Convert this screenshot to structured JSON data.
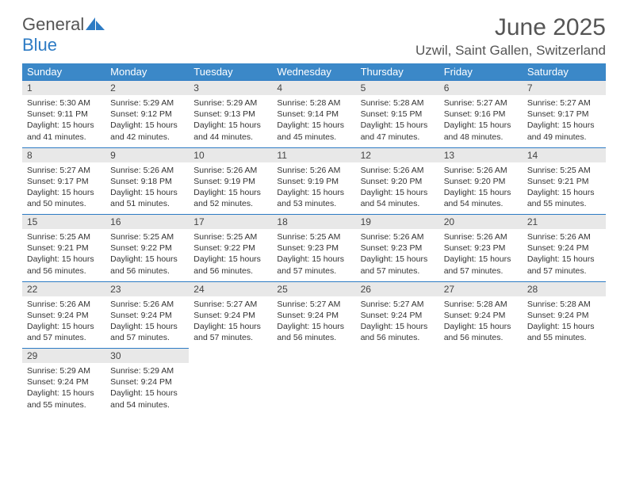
{
  "logo": {
    "text_general": "General",
    "text_blue": "Blue"
  },
  "title": "June 2025",
  "location": "Uzwil, Saint Gallen, Switzerland",
  "colors": {
    "header_bg": "#3b88c8",
    "header_text": "#ffffff",
    "daynum_bg": "#e8e8e8",
    "daynum_border": "#2d7bc4",
    "text": "#333333",
    "title_text": "#555555"
  },
  "day_headers": [
    "Sunday",
    "Monday",
    "Tuesday",
    "Wednesday",
    "Thursday",
    "Friday",
    "Saturday"
  ],
  "weeks": [
    [
      {
        "num": "1",
        "sunrise": "Sunrise: 5:30 AM",
        "sunset": "Sunset: 9:11 PM",
        "daylight": "Daylight: 15 hours and 41 minutes."
      },
      {
        "num": "2",
        "sunrise": "Sunrise: 5:29 AM",
        "sunset": "Sunset: 9:12 PM",
        "daylight": "Daylight: 15 hours and 42 minutes."
      },
      {
        "num": "3",
        "sunrise": "Sunrise: 5:29 AM",
        "sunset": "Sunset: 9:13 PM",
        "daylight": "Daylight: 15 hours and 44 minutes."
      },
      {
        "num": "4",
        "sunrise": "Sunrise: 5:28 AM",
        "sunset": "Sunset: 9:14 PM",
        "daylight": "Daylight: 15 hours and 45 minutes."
      },
      {
        "num": "5",
        "sunrise": "Sunrise: 5:28 AM",
        "sunset": "Sunset: 9:15 PM",
        "daylight": "Daylight: 15 hours and 47 minutes."
      },
      {
        "num": "6",
        "sunrise": "Sunrise: 5:27 AM",
        "sunset": "Sunset: 9:16 PM",
        "daylight": "Daylight: 15 hours and 48 minutes."
      },
      {
        "num": "7",
        "sunrise": "Sunrise: 5:27 AM",
        "sunset": "Sunset: 9:17 PM",
        "daylight": "Daylight: 15 hours and 49 minutes."
      }
    ],
    [
      {
        "num": "8",
        "sunrise": "Sunrise: 5:27 AM",
        "sunset": "Sunset: 9:17 PM",
        "daylight": "Daylight: 15 hours and 50 minutes."
      },
      {
        "num": "9",
        "sunrise": "Sunrise: 5:26 AM",
        "sunset": "Sunset: 9:18 PM",
        "daylight": "Daylight: 15 hours and 51 minutes."
      },
      {
        "num": "10",
        "sunrise": "Sunrise: 5:26 AM",
        "sunset": "Sunset: 9:19 PM",
        "daylight": "Daylight: 15 hours and 52 minutes."
      },
      {
        "num": "11",
        "sunrise": "Sunrise: 5:26 AM",
        "sunset": "Sunset: 9:19 PM",
        "daylight": "Daylight: 15 hours and 53 minutes."
      },
      {
        "num": "12",
        "sunrise": "Sunrise: 5:26 AM",
        "sunset": "Sunset: 9:20 PM",
        "daylight": "Daylight: 15 hours and 54 minutes."
      },
      {
        "num": "13",
        "sunrise": "Sunrise: 5:26 AM",
        "sunset": "Sunset: 9:20 PM",
        "daylight": "Daylight: 15 hours and 54 minutes."
      },
      {
        "num": "14",
        "sunrise": "Sunrise: 5:25 AM",
        "sunset": "Sunset: 9:21 PM",
        "daylight": "Daylight: 15 hours and 55 minutes."
      }
    ],
    [
      {
        "num": "15",
        "sunrise": "Sunrise: 5:25 AM",
        "sunset": "Sunset: 9:21 PM",
        "daylight": "Daylight: 15 hours and 56 minutes."
      },
      {
        "num": "16",
        "sunrise": "Sunrise: 5:25 AM",
        "sunset": "Sunset: 9:22 PM",
        "daylight": "Daylight: 15 hours and 56 minutes."
      },
      {
        "num": "17",
        "sunrise": "Sunrise: 5:25 AM",
        "sunset": "Sunset: 9:22 PM",
        "daylight": "Daylight: 15 hours and 56 minutes."
      },
      {
        "num": "18",
        "sunrise": "Sunrise: 5:25 AM",
        "sunset": "Sunset: 9:23 PM",
        "daylight": "Daylight: 15 hours and 57 minutes."
      },
      {
        "num": "19",
        "sunrise": "Sunrise: 5:26 AM",
        "sunset": "Sunset: 9:23 PM",
        "daylight": "Daylight: 15 hours and 57 minutes."
      },
      {
        "num": "20",
        "sunrise": "Sunrise: 5:26 AM",
        "sunset": "Sunset: 9:23 PM",
        "daylight": "Daylight: 15 hours and 57 minutes."
      },
      {
        "num": "21",
        "sunrise": "Sunrise: 5:26 AM",
        "sunset": "Sunset: 9:24 PM",
        "daylight": "Daylight: 15 hours and 57 minutes."
      }
    ],
    [
      {
        "num": "22",
        "sunrise": "Sunrise: 5:26 AM",
        "sunset": "Sunset: 9:24 PM",
        "daylight": "Daylight: 15 hours and 57 minutes."
      },
      {
        "num": "23",
        "sunrise": "Sunrise: 5:26 AM",
        "sunset": "Sunset: 9:24 PM",
        "daylight": "Daylight: 15 hours and 57 minutes."
      },
      {
        "num": "24",
        "sunrise": "Sunrise: 5:27 AM",
        "sunset": "Sunset: 9:24 PM",
        "daylight": "Daylight: 15 hours and 57 minutes."
      },
      {
        "num": "25",
        "sunrise": "Sunrise: 5:27 AM",
        "sunset": "Sunset: 9:24 PM",
        "daylight": "Daylight: 15 hours and 56 minutes."
      },
      {
        "num": "26",
        "sunrise": "Sunrise: 5:27 AM",
        "sunset": "Sunset: 9:24 PM",
        "daylight": "Daylight: 15 hours and 56 minutes."
      },
      {
        "num": "27",
        "sunrise": "Sunrise: 5:28 AM",
        "sunset": "Sunset: 9:24 PM",
        "daylight": "Daylight: 15 hours and 56 minutes."
      },
      {
        "num": "28",
        "sunrise": "Sunrise: 5:28 AM",
        "sunset": "Sunset: 9:24 PM",
        "daylight": "Daylight: 15 hours and 55 minutes."
      }
    ],
    [
      {
        "num": "29",
        "sunrise": "Sunrise: 5:29 AM",
        "sunset": "Sunset: 9:24 PM",
        "daylight": "Daylight: 15 hours and 55 minutes."
      },
      {
        "num": "30",
        "sunrise": "Sunrise: 5:29 AM",
        "sunset": "Sunset: 9:24 PM",
        "daylight": "Daylight: 15 hours and 54 minutes."
      },
      null,
      null,
      null,
      null,
      null
    ]
  ]
}
